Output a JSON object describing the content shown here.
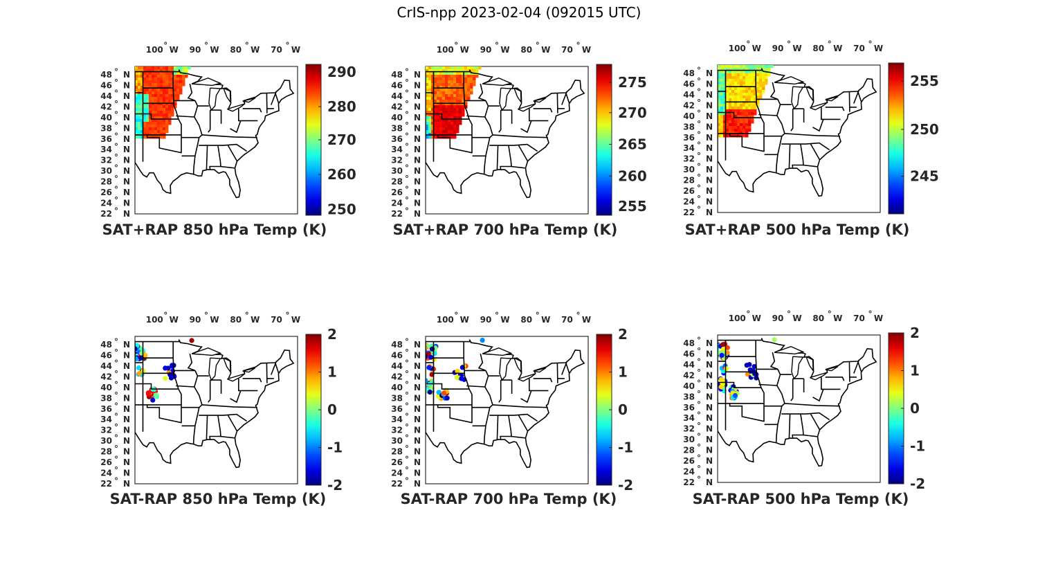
{
  "figure_title": "CrIS-npp 2023-02-04 (092015 UTC)",
  "lon_ticks": [
    {
      "deg": "100",
      "hem": "W"
    },
    {
      "deg": "90",
      "hem": "W"
    },
    {
      "deg": "80",
      "hem": "W"
    },
    {
      "deg": "70",
      "hem": "W"
    }
  ],
  "lat_ticks": [
    "48",
    "46",
    "44",
    "42",
    "40",
    "38",
    "36",
    "34",
    "32",
    "30",
    "28",
    "26",
    "24",
    "22"
  ],
  "lat_hem": "N",
  "degree_symbol": "°",
  "colors": {
    "map_outline": "#000000",
    "colormap": "jet"
  },
  "panels": [
    {
      "id": "p850sum",
      "title": "SAT+RAP 850 hPa Temp (K)",
      "colorbar_ticks": [
        "290",
        "280",
        "270",
        "260",
        "250"
      ],
      "field": "temp850"
    },
    {
      "id": "p700sum",
      "title": "SAT+RAP 700 hPa Temp (K)",
      "colorbar_ticks": [
        "275",
        "270",
        "265",
        "260",
        "255"
      ],
      "field": "temp700"
    },
    {
      "id": "p500sum",
      "title": "SAT+RAP 500 hPa Temp (K)",
      "colorbar_ticks": [
        "255",
        "250",
        "245"
      ],
      "field": "temp500"
    },
    {
      "id": "p850diff",
      "title": "SAT-RAP 850 hPa Temp (K)",
      "colorbar_ticks": [
        "2",
        "1",
        "0",
        "-1",
        "-2"
      ],
      "field": "diff850"
    },
    {
      "id": "p700diff",
      "title": "SAT-RAP 700 hPa Temp (K)",
      "colorbar_ticks": [
        "2",
        "1",
        "0",
        "-1",
        "-2"
      ],
      "field": "diff700"
    },
    {
      "id": "p500diff",
      "title": "SAT-RAP 500 hPa Temp (K)",
      "colorbar_ticks": [
        "2",
        "1",
        "0",
        "-1",
        "-2"
      ],
      "field": "diff500"
    }
  ]
}
